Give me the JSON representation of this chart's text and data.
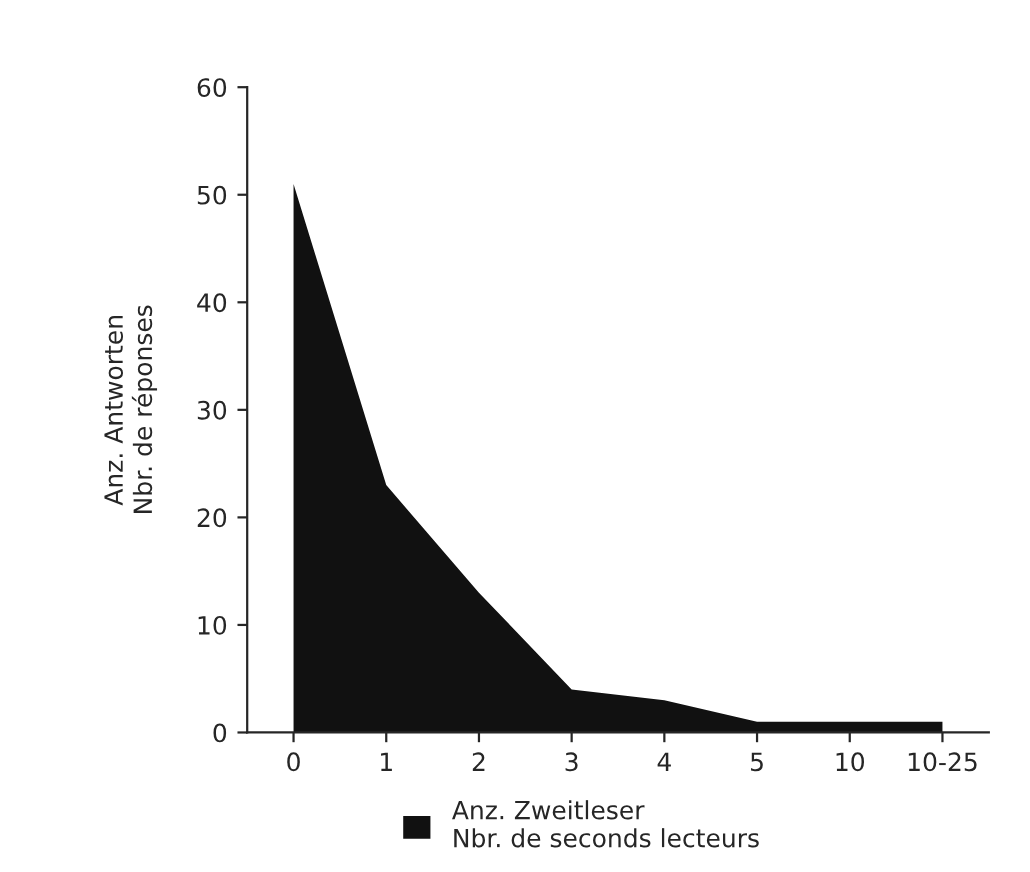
{
  "chart_data": {
    "type": "area",
    "ylabel": "Anz. Antworten\nNbr. de réponses",
    "categories": [
      "0",
      "1",
      "2",
      "3",
      "4",
      "5",
      "10",
      "10-25"
    ],
    "series": [
      {
        "name": "Anz. Zweitleser\nNbr. de seconds lecteurs",
        "color": "#111111",
        "values": [
          51,
          23,
          13,
          4,
          3,
          1,
          1,
          1
        ]
      }
    ],
    "ylim": [
      0,
      60
    ],
    "yticks": [
      0,
      10,
      20,
      30,
      40,
      50,
      60
    ],
    "grid": false,
    "legend": "bottom"
  }
}
